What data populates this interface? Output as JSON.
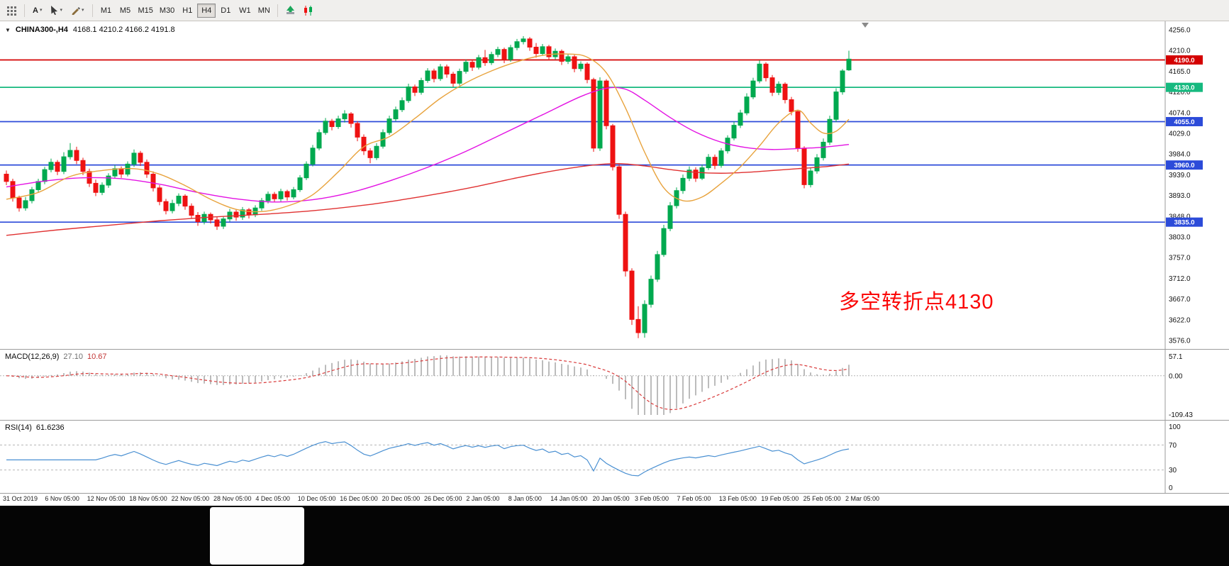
{
  "toolbar": {
    "text_tool": "A",
    "timeframes": [
      "M1",
      "M5",
      "M15",
      "M30",
      "H1",
      "H4",
      "D1",
      "W1",
      "MN"
    ],
    "active_timeframe": "H4"
  },
  "chart_data": {
    "type": "candlestick",
    "symbol_period": "CHINA300-,H4",
    "ohlc_text": "4168.1 4210.2 4166.2 4191.8",
    "annotation": {
      "text": "多空转折点4130",
      "color": "#FB0606"
    },
    "up_color": "#00A94F",
    "down_color": "#EE1212",
    "price_axis": {
      "max": 4256.0,
      "min": 3576.0,
      "labels": [
        "4256.0",
        "4210.0",
        "4165.0",
        "4120.0",
        "4074.0",
        "4029.0",
        "3984.0",
        "3939.0",
        "3893.0",
        "3848.0",
        "3803.0",
        "3757.0",
        "3712.0",
        "3667.0",
        "3622.0",
        "3576.0"
      ]
    },
    "hlines": [
      {
        "price": 4190.0,
        "label": "4190.0",
        "color": "#D40000"
      },
      {
        "price": 4130.0,
        "label": "4130.0",
        "color": "#16B97F"
      },
      {
        "price": 4055.0,
        "label": "4055.0",
        "color": "#2C4BD9"
      },
      {
        "price": 3960.0,
        "label": "3960.0",
        "color": "#2C4BD9"
      },
      {
        "price": 3835.0,
        "label": "3835.0",
        "color": "#2C4BD9"
      }
    ],
    "ma_lines": [
      {
        "name": "ma-slow-red",
        "color": "#E03131",
        "points": [
          [
            0,
            3806
          ],
          [
            8,
            3818
          ],
          [
            16,
            3828
          ],
          [
            24,
            3838
          ],
          [
            32,
            3846
          ],
          [
            40,
            3852
          ],
          [
            48,
            3860
          ],
          [
            56,
            3872
          ],
          [
            62,
            3884
          ],
          [
            68,
            3898
          ],
          [
            74,
            3914
          ],
          [
            80,
            3932
          ],
          [
            86,
            3948
          ],
          [
            92,
            3960
          ],
          [
            96,
            3963
          ],
          [
            100,
            3958
          ],
          [
            104,
            3950
          ],
          [
            108,
            3944
          ],
          [
            112,
            3942
          ],
          [
            116,
            3944
          ],
          [
            120,
            3948
          ],
          [
            124,
            3952
          ],
          [
            128,
            3956
          ],
          [
            132,
            3962
          ]
        ]
      },
      {
        "name": "ma-medium-magenta",
        "color": "#E312E3",
        "points": [
          [
            0,
            3912
          ],
          [
            6,
            3925
          ],
          [
            12,
            3932
          ],
          [
            18,
            3930
          ],
          [
            24,
            3918
          ],
          [
            30,
            3900
          ],
          [
            36,
            3886
          ],
          [
            42,
            3879
          ],
          [
            48,
            3884
          ],
          [
            54,
            3900
          ],
          [
            60,
            3925
          ],
          [
            66,
            3955
          ],
          [
            72,
            3990
          ],
          [
            78,
            4030
          ],
          [
            84,
            4070
          ],
          [
            90,
            4110
          ],
          [
            94,
            4128
          ],
          [
            97,
            4126
          ],
          [
            100,
            4102
          ],
          [
            104,
            4064
          ],
          [
            108,
            4032
          ],
          [
            112,
            4010
          ],
          [
            116,
            3998
          ],
          [
            120,
            3994
          ],
          [
            124,
            3996
          ],
          [
            128,
            3999
          ],
          [
            132,
            4005
          ]
        ]
      },
      {
        "name": "ma-fast-orange",
        "color": "#E8A33D",
        "points": [
          [
            0,
            3885
          ],
          [
            5,
            3900
          ],
          [
            10,
            3935
          ],
          [
            15,
            3948
          ],
          [
            20,
            3952
          ],
          [
            24,
            3940
          ],
          [
            28,
            3915
          ],
          [
            32,
            3885
          ],
          [
            36,
            3863
          ],
          [
            40,
            3858
          ],
          [
            44,
            3870
          ],
          [
            48,
            3895
          ],
          [
            52,
            3945
          ],
          [
            56,
            4000
          ],
          [
            60,
            4022
          ],
          [
            64,
            4062
          ],
          [
            68,
            4106
          ],
          [
            72,
            4140
          ],
          [
            76,
            4166
          ],
          [
            80,
            4186
          ],
          [
            84,
            4200
          ],
          [
            88,
            4203
          ],
          [
            91,
            4196
          ],
          [
            94,
            4162
          ],
          [
            97,
            4085
          ],
          [
            100,
            3988
          ],
          [
            103,
            3910
          ],
          [
            106,
            3882
          ],
          [
            109,
            3890
          ],
          [
            112,
            3920
          ],
          [
            115,
            3956
          ],
          [
            118,
            4002
          ],
          [
            121,
            4052
          ],
          [
            124,
            4080
          ],
          [
            126,
            4052
          ],
          [
            128,
            4030
          ],
          [
            130,
            4034
          ],
          [
            132,
            4060
          ]
        ]
      }
    ],
    "candles": [
      [
        3940,
        3948,
        3916,
        3924
      ],
      [
        3924,
        3930,
        3880,
        3888
      ],
      [
        3888,
        3893,
        3858,
        3866
      ],
      [
        3866,
        3890,
        3860,
        3882
      ],
      [
        3882,
        3912,
        3876,
        3906
      ],
      [
        3906,
        3930,
        3900,
        3924
      ],
      [
        3924,
        3956,
        3918,
        3950
      ],
      [
        3950,
        3974,
        3944,
        3966
      ],
      [
        3966,
        3971,
        3938,
        3946
      ],
      [
        3946,
        3988,
        3940,
        3978
      ],
      [
        3978,
        4008,
        3972,
        3992
      ],
      [
        3992,
        4000,
        3962,
        3970
      ],
      [
        3970,
        3976,
        3938,
        3946
      ],
      [
        3946,
        3952,
        3912,
        3920
      ],
      [
        3920,
        3928,
        3892,
        3900
      ],
      [
        3900,
        3922,
        3894,
        3916
      ],
      [
        3916,
        3942,
        3910,
        3936
      ],
      [
        3936,
        3960,
        3930,
        3952
      ],
      [
        3952,
        3957,
        3932,
        3940
      ],
      [
        3940,
        3968,
        3935,
        3962
      ],
      [
        3962,
        3994,
        3956,
        3986
      ],
      [
        3986,
        3991,
        3958,
        3966
      ],
      [
        3966,
        3972,
        3932,
        3940
      ],
      [
        3940,
        3946,
        3902,
        3910
      ],
      [
        3910,
        3916,
        3872,
        3880
      ],
      [
        3880,
        3886,
        3852,
        3860
      ],
      [
        3860,
        3884,
        3854,
        3876
      ],
      [
        3876,
        3898,
        3870,
        3892
      ],
      [
        3892,
        3896,
        3862,
        3870
      ],
      [
        3870,
        3876,
        3842,
        3850
      ],
      [
        3850,
        3857,
        3827,
        3836
      ],
      [
        3836,
        3858,
        3830,
        3852
      ],
      [
        3852,
        3856,
        3832,
        3840
      ],
      [
        3840,
        3846,
        3818,
        3826
      ],
      [
        3826,
        3848,
        3820,
        3842
      ],
      [
        3842,
        3864,
        3836,
        3857
      ],
      [
        3857,
        3862,
        3838,
        3846
      ],
      [
        3846,
        3868,
        3840,
        3862
      ],
      [
        3862,
        3866,
        3843,
        3851
      ],
      [
        3851,
        3872,
        3846,
        3866
      ],
      [
        3866,
        3888,
        3860,
        3882
      ],
      [
        3882,
        3902,
        3876,
        3896
      ],
      [
        3896,
        3901,
        3878,
        3886
      ],
      [
        3886,
        3908,
        3880,
        3902
      ],
      [
        3902,
        3906,
        3882,
        3890
      ],
      [
        3890,
        3912,
        3885,
        3906
      ],
      [
        3906,
        3938,
        3901,
        3932
      ],
      [
        3932,
        3968,
        3927,
        3962
      ],
      [
        3962,
        4004,
        3957,
        3997
      ],
      [
        3997,
        4038,
        3992,
        4031
      ],
      [
        4031,
        4063,
        4026,
        4056
      ],
      [
        4056,
        4061,
        4036,
        4044
      ],
      [
        4044,
        4068,
        4039,
        4061
      ],
      [
        4061,
        4080,
        4053,
        4072
      ],
      [
        4072,
        4076,
        4042,
        4051
      ],
      [
        4051,
        4056,
        4012,
        4021
      ],
      [
        4021,
        4027,
        3982,
        3991
      ],
      [
        3991,
        3997,
        3964,
        3976
      ],
      [
        3976,
        4008,
        3971,
        4001
      ],
      [
        4001,
        4038,
        3996,
        4031
      ],
      [
        4031,
        4068,
        4026,
        4061
      ],
      [
        4061,
        4088,
        4056,
        4081
      ],
      [
        4081,
        4108,
        4076,
        4101
      ],
      [
        4101,
        4138,
        4096,
        4131
      ],
      [
        4131,
        4136,
        4111,
        4119
      ],
      [
        4119,
        4151,
        4114,
        4145
      ],
      [
        4145,
        4172,
        4140,
        4166
      ],
      [
        4166,
        4171,
        4141,
        4149
      ],
      [
        4149,
        4181,
        4144,
        4175
      ],
      [
        4175,
        4180,
        4151,
        4159
      ],
      [
        4159,
        4164,
        4131,
        4139
      ],
      [
        4139,
        4171,
        4134,
        4165
      ],
      [
        4165,
        4191,
        4160,
        4185
      ],
      [
        4185,
        4190,
        4166,
        4174
      ],
      [
        4174,
        4201,
        4169,
        4195
      ],
      [
        4195,
        4212,
        4177,
        4184
      ],
      [
        4184,
        4208,
        4179,
        4202
      ],
      [
        4202,
        4219,
        4196,
        4213
      ],
      [
        4213,
        4217,
        4183,
        4191
      ],
      [
        4191,
        4223,
        4186,
        4217
      ],
      [
        4217,
        4236,
        4211,
        4230
      ],
      [
        4230,
        4242,
        4224,
        4236
      ],
      [
        4236,
        4240,
        4210,
        4218
      ],
      [
        4218,
        4227,
        4195,
        4204
      ],
      [
        4204,
        4225,
        4199,
        4219
      ],
      [
        4219,
        4223,
        4189,
        4197
      ],
      [
        4197,
        4215,
        4191,
        4209
      ],
      [
        4209,
        4213,
        4179,
        4187
      ],
      [
        4187,
        4203,
        4181,
        4197
      ],
      [
        4197,
        4201,
        4163,
        4171
      ],
      [
        4171,
        4187,
        4165,
        4181
      ],
      [
        4181,
        4185,
        4139,
        4147
      ],
      [
        4147,
        4151,
        3989,
        3997
      ],
      [
        3997,
        4152,
        3991,
        4144
      ],
      [
        4144,
        4148,
        4038,
        4046
      ],
      [
        4046,
        4050,
        3948,
        3956
      ],
      [
        3956,
        3962,
        3842,
        3852
      ],
      [
        3852,
        3858,
        3716,
        3728
      ],
      [
        3728,
        3734,
        3610,
        3622
      ],
      [
        3622,
        3651,
        3581,
        3593
      ],
      [
        3593,
        3664,
        3582,
        3655
      ],
      [
        3655,
        3718,
        3648,
        3710
      ],
      [
        3710,
        3772,
        3704,
        3764
      ],
      [
        3764,
        3829,
        3759,
        3821
      ],
      [
        3821,
        3879,
        3815,
        3871
      ],
      [
        3871,
        3911,
        3865,
        3904
      ],
      [
        3904,
        3939,
        3897,
        3931
      ],
      [
        3931,
        3957,
        3925,
        3949
      ],
      [
        3949,
        3955,
        3923,
        3931
      ],
      [
        3931,
        3961,
        3927,
        3954
      ],
      [
        3954,
        3984,
        3949,
        3977
      ],
      [
        3977,
        3983,
        3951,
        3959
      ],
      [
        3959,
        3997,
        3954,
        3991
      ],
      [
        3991,
        4025,
        3985,
        4019
      ],
      [
        4019,
        4055,
        4014,
        4047
      ],
      [
        4047,
        4081,
        4041,
        4074
      ],
      [
        4074,
        4117,
        4069,
        4109
      ],
      [
        4109,
        4151,
        4104,
        4144
      ],
      [
        4144,
        4189,
        4139,
        4181
      ],
      [
        4181,
        4185,
        4143,
        4151
      ],
      [
        4151,
        4157,
        4111,
        4119
      ],
      [
        4119,
        4143,
        4113,
        4137
      ],
      [
        4137,
        4141,
        4095,
        4103
      ],
      [
        4103,
        4109,
        4069,
        4077
      ],
      [
        4077,
        4081,
        3989,
        3997
      ],
      [
        3997,
        4001,
        3909,
        3917
      ],
      [
        3917,
        3955,
        3911,
        3947
      ],
      [
        3947,
        3984,
        3941,
        3976
      ],
      [
        3976,
        4018,
        3970,
        4010
      ],
      [
        4010,
        4068,
        4004,
        4060
      ],
      [
        4060,
        4128,
        4054,
        4120
      ],
      [
        4120,
        4170,
        4114,
        4166
      ],
      [
        4168.1,
        4210.2,
        4166.2,
        4191.8
      ]
    ],
    "time_axis": {
      "ticks": [
        {
          "label": "31 Oct 2019",
          "bar": 0
        },
        {
          "label": "6 Nov 05:00",
          "bar": 6.6
        },
        {
          "label": "12 Nov 05:00",
          "bar": 13.2
        },
        {
          "label": "18 Nov 05:00",
          "bar": 19.8
        },
        {
          "label": "22 Nov 05:00",
          "bar": 26.4
        },
        {
          "label": "28 Nov 05:00",
          "bar": 33
        },
        {
          "label": "4 Dec 05:00",
          "bar": 39.6
        },
        {
          "label": "10 Dec 05:00",
          "bar": 46.2
        },
        {
          "label": "16 Dec 05:00",
          "bar": 52.8
        },
        {
          "label": "20 Dec 05:00",
          "bar": 59.4
        },
        {
          "label": "26 Dec 05:00",
          "bar": 66
        },
        {
          "label": "2 Jan 05:00",
          "bar": 72.6
        },
        {
          "label": "8 Jan 05:00",
          "bar": 79.2
        },
        {
          "label": "14 Jan 05:00",
          "bar": 85.8
        },
        {
          "label": "20 Jan 05:00",
          "bar": 92.4
        },
        {
          "label": "3 Feb 05:00",
          "bar": 99
        },
        {
          "label": "7 Feb 05:00",
          "bar": 105.6
        },
        {
          "label": "13 Feb 05:00",
          "bar": 112.2
        },
        {
          "label": "19 Feb 05:00",
          "bar": 118.8
        },
        {
          "label": "25 Feb 05:00",
          "bar": 125.4
        },
        {
          "label": "2 Mar 05:00",
          "bar": 132
        }
      ]
    },
    "macd": {
      "name": "MACD(12,26,9)",
      "value_main": "27.10",
      "value_signal": "10.67",
      "fast": 12,
      "slow": 26,
      "signal": 9,
      "max": 57.1,
      "min": -109.43,
      "axis_labels": [
        "57.1",
        "0.00",
        "-109.43"
      ],
      "hist_color": "#8F8F8F",
      "signal_color": "#D93A3A"
    },
    "rsi": {
      "name": "RSI(14)",
      "value": "61.6236",
      "period": 14,
      "max": 100,
      "min": 0,
      "levels": [
        70,
        30
      ],
      "axis_labels": [
        "100",
        "70",
        "30",
        "0"
      ],
      "color": "#4A90D2"
    }
  }
}
